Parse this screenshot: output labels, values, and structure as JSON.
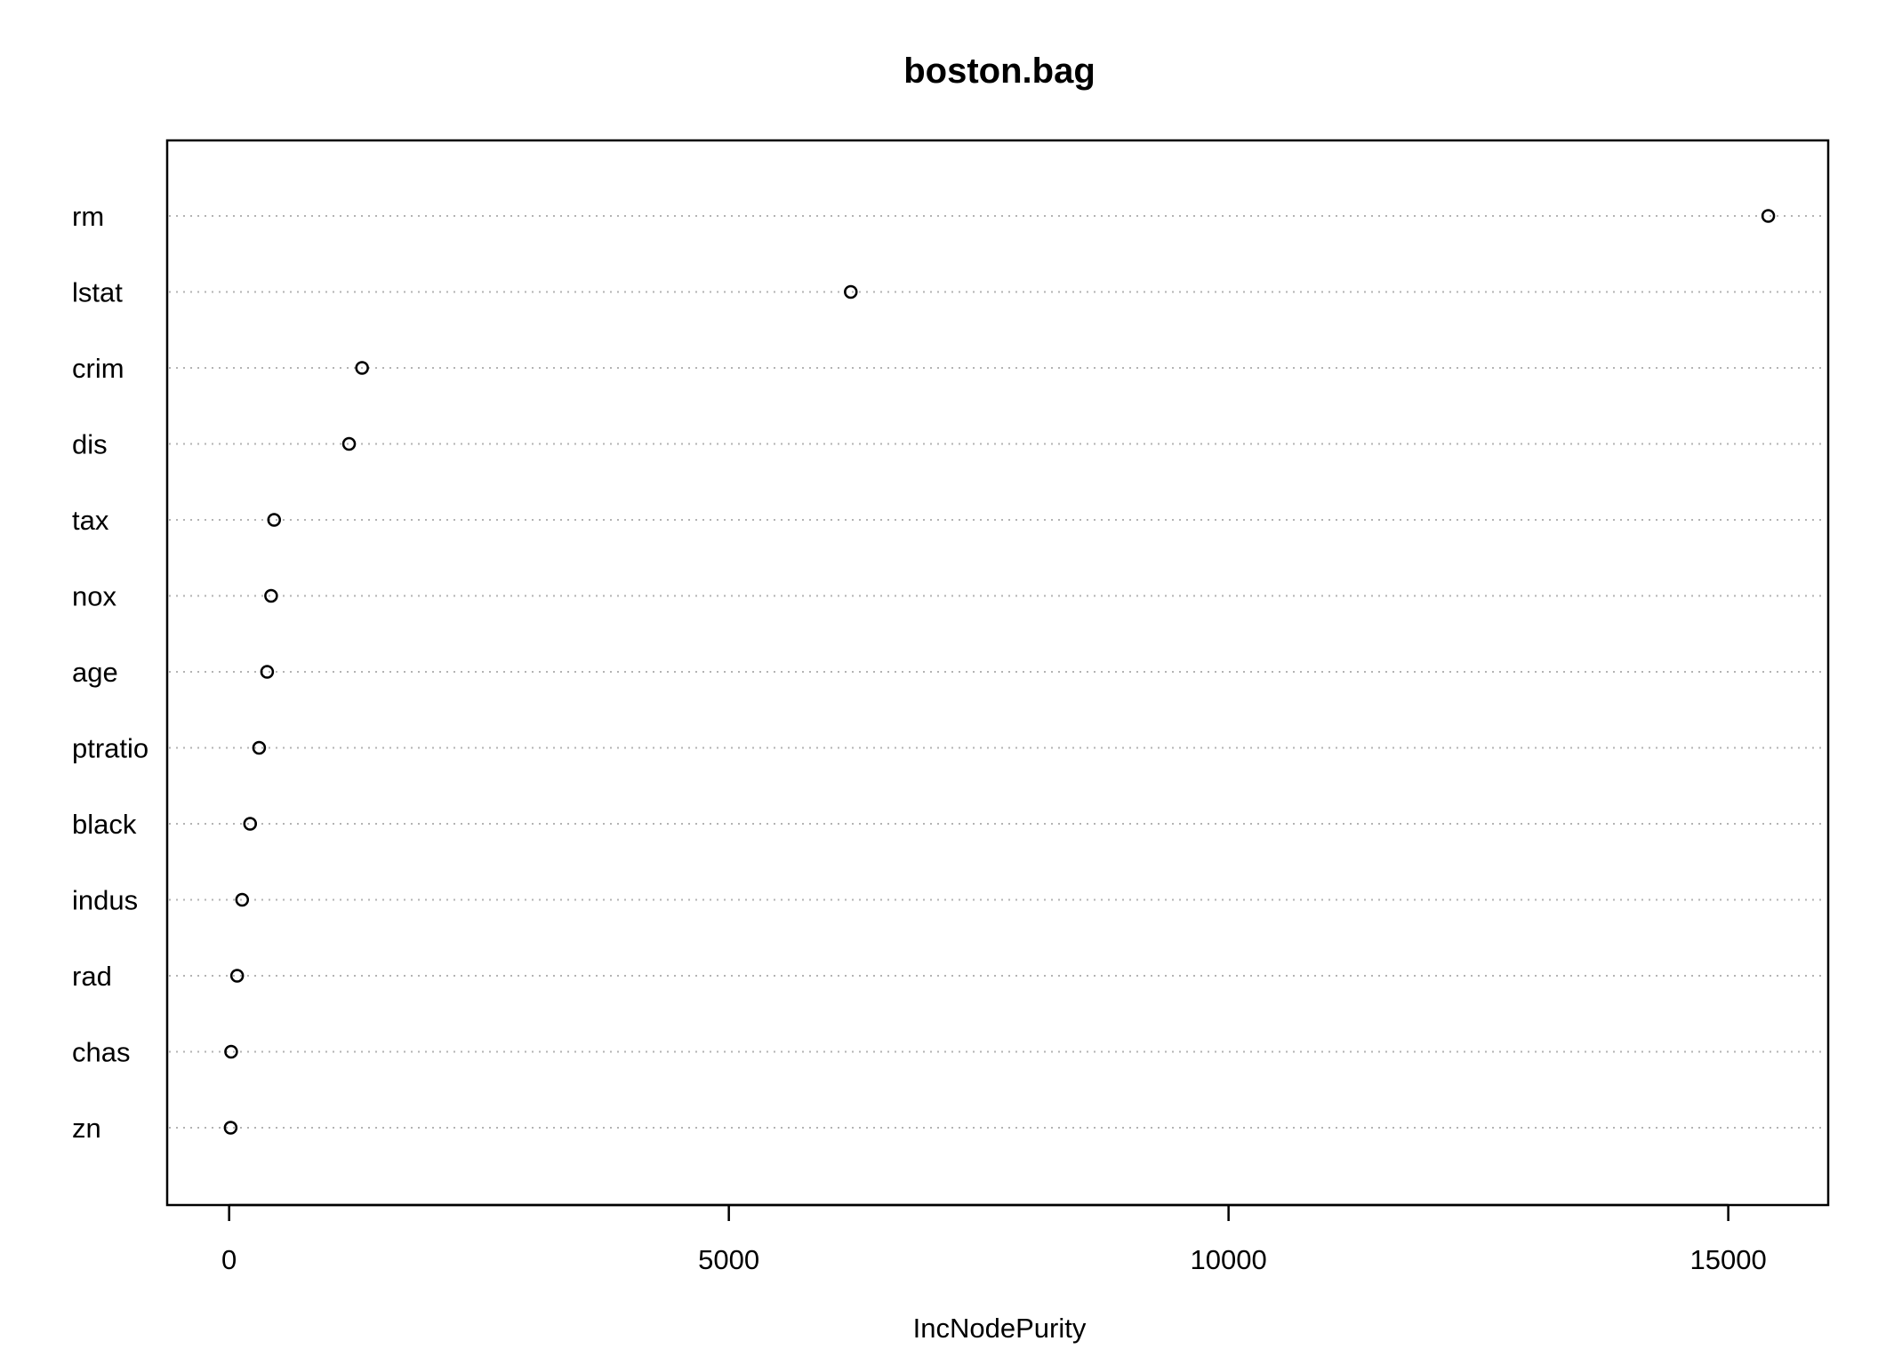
{
  "chart_data": {
    "type": "scatter",
    "subtype": "dotchart",
    "title": "boston.bag",
    "xlabel": "IncNodePurity",
    "ylabel": "",
    "xlim": [
      -620,
      16000
    ],
    "xticks": [
      0,
      5000,
      10000,
      15000
    ],
    "xtick_labels": [
      "0",
      "5000",
      "10000",
      "15000"
    ],
    "grid": "dotted horizontal lines per category",
    "marker": "open circle",
    "colors": {
      "point": "#000000",
      "grid": "#b3b3b3",
      "frame": "#000000"
    },
    "categories": [
      "rm",
      "lstat",
      "crim",
      "dis",
      "tax",
      "nox",
      "age",
      "ptratio",
      "black",
      "indus",
      "rad",
      "chas",
      "zn"
    ],
    "values": [
      15400,
      6220,
      1330,
      1200,
      450,
      420,
      380,
      300,
      210,
      130,
      80,
      20,
      15
    ]
  }
}
